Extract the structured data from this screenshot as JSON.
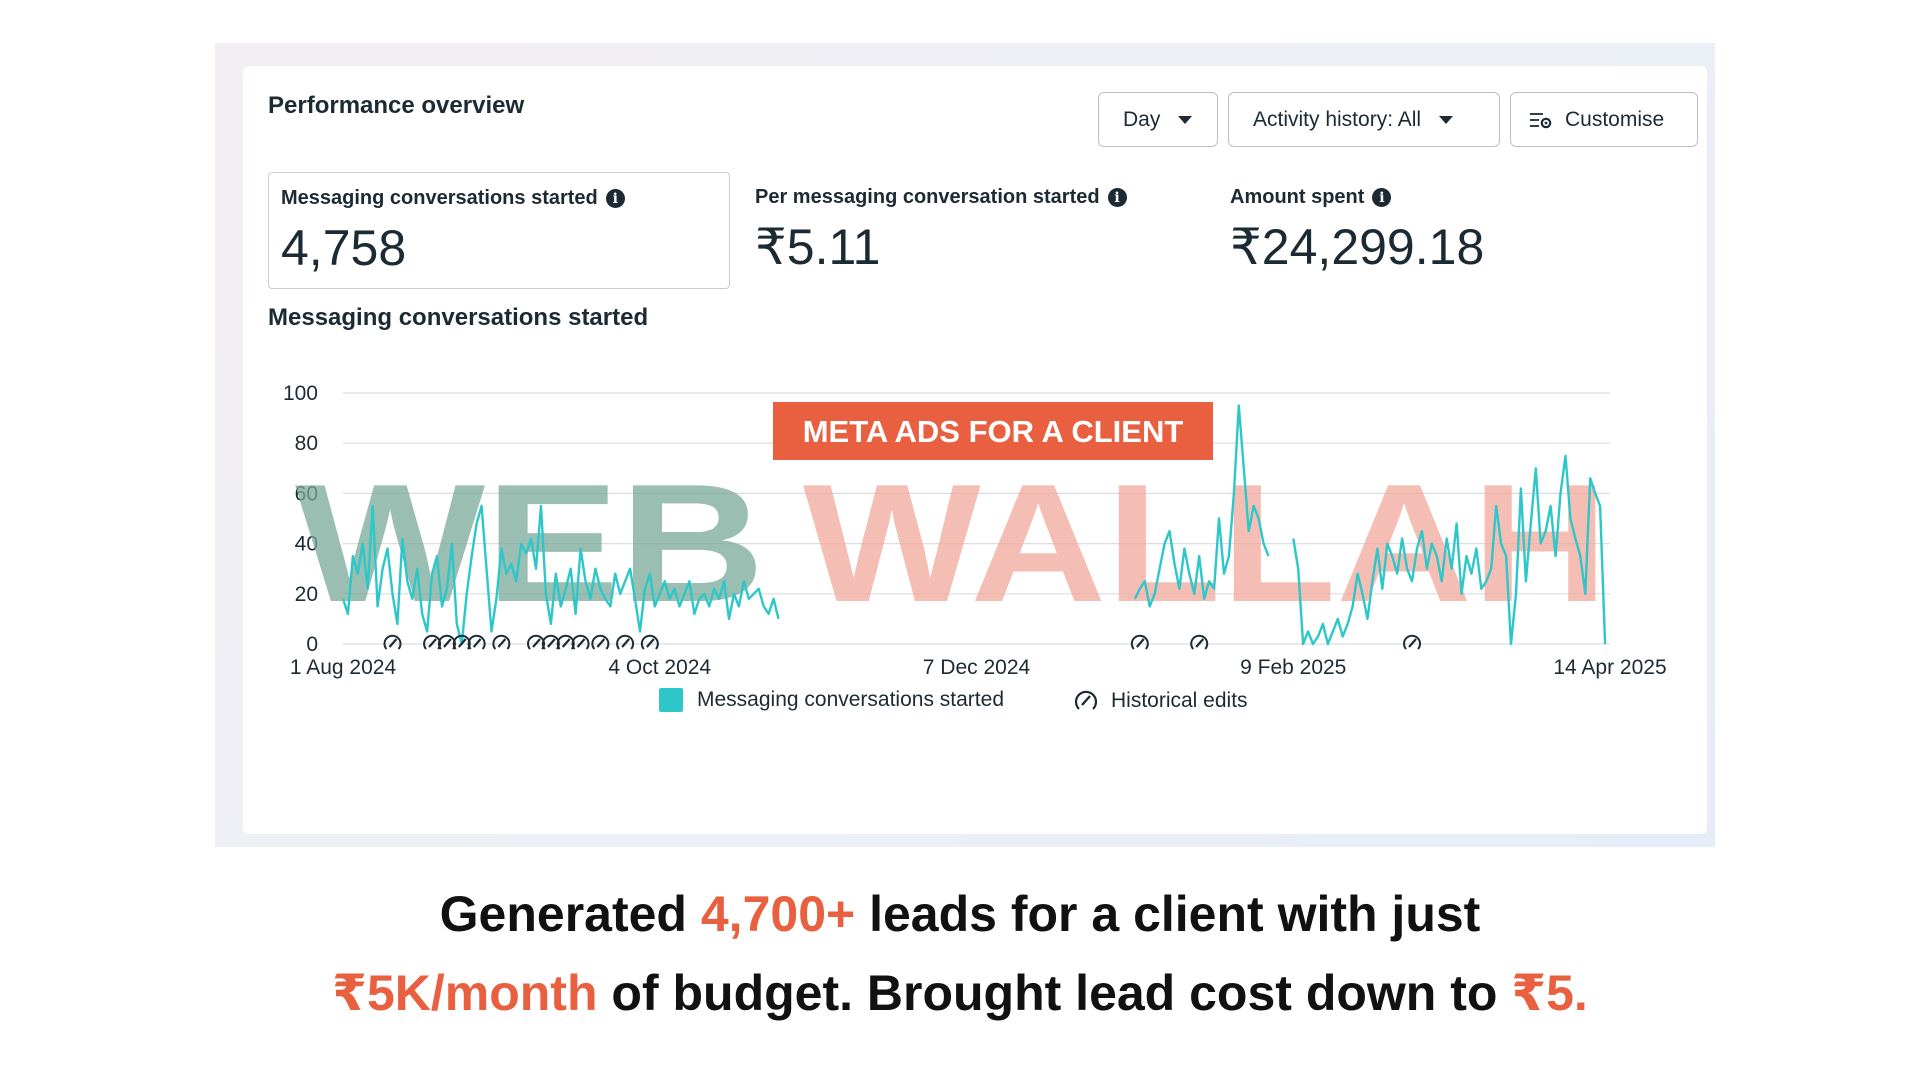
{
  "card": {
    "title": "Performance overview",
    "controls": {
      "day": "Day",
      "activity": "Activity history: All",
      "customise": "Customise"
    }
  },
  "metrics": [
    {
      "label": "Messaging conversations started",
      "value": "4,758"
    },
    {
      "label": "Per messaging conversation started",
      "value": "₹5.11"
    },
    {
      "label": "Amount spent",
      "value": "₹24,299.18"
    }
  ],
  "chart_title": "Messaging conversations started",
  "chart_data": {
    "type": "line",
    "title": "",
    "xlabel": "",
    "ylabel": "",
    "ylim": [
      0,
      100
    ],
    "yticks": [
      "0",
      "20",
      "40",
      "60",
      "80",
      "100"
    ],
    "xticks": [
      "1 Aug 2024",
      "4 Oct 2024",
      "7 Dec 2024",
      "9 Feb 2025",
      "14 Apr 2025"
    ],
    "grid": true,
    "legend_placement": "bottom-center",
    "series_color": "#2ec7c9",
    "series": [
      {
        "name": "Messaging conversations started",
        "segments": [
          {
            "start": "2024-08-01",
            "values": [
              18,
              12,
              35,
              28,
              40,
              22,
              55,
              15,
              30,
              38,
              20,
              8,
              42,
              25,
              18,
              30,
              12,
              5,
              28,
              35,
              15,
              22,
              40,
              8,
              0,
              20,
              35,
              48,
              55,
              30,
              5,
              18,
              38,
              28,
              32,
              25,
              40,
              36,
              42,
              30,
              55,
              20,
              8,
              28,
              15,
              22,
              30,
              12,
              38,
              25,
              18,
              30,
              22,
              18,
              15,
              28,
              20,
              25,
              30,
              18,
              5,
              22,
              28,
              15,
              20,
              25,
              18,
              22,
              15,
              20,
              25,
              12,
              18,
              20,
              15,
              22,
              18,
              25,
              10,
              20,
              15,
              25,
              18,
              20,
              22,
              15,
              12,
              18,
              10
            ]
          },
          {
            "start": "2025-01-08",
            "values": [
              18,
              22,
              25,
              15,
              20,
              30,
              40,
              45,
              32,
              22,
              38,
              28,
              20,
              35,
              18,
              25,
              22,
              50,
              28,
              35,
              60,
              95,
              70,
              45,
              55,
              50,
              40,
              35
            ]
          },
          {
            "start": "2025-02-09",
            "values": [
              42,
              30,
              0,
              5,
              0,
              3,
              8,
              0,
              5,
              10,
              3,
              8,
              15,
              28,
              20,
              10,
              25,
              38,
              22,
              40,
              35,
              28,
              42,
              30,
              25,
              38,
              45,
              30,
              40,
              35,
              25,
              42,
              30,
              48,
              20,
              35,
              28,
              38,
              22,
              25,
              30,
              55,
              40,
              35,
              0,
              20,
              62,
              25,
              48,
              70,
              40,
              45,
              55,
              35,
              60,
              75,
              50,
              42,
              35,
              20,
              66,
              60,
              55,
              0
            ]
          }
        ]
      }
    ],
    "historical_edit_markers": [
      "2024-08-11",
      "2024-08-19",
      "2024-08-22",
      "2024-08-25",
      "2024-08-28",
      "2024-09-02",
      "2024-09-09",
      "2024-09-12",
      "2024-09-15",
      "2024-09-18",
      "2024-09-22",
      "2024-09-27",
      "2024-10-02",
      "2025-01-09",
      "2025-01-21",
      "2025-03-05"
    ],
    "legend": [
      "Messaging conversations started",
      "Historical edits"
    ]
  },
  "watermark": {
    "badge": "META ADS FOR A CLIENT",
    "word1": "WEB",
    "word2": "WALLAH",
    "color1": "#7aa898",
    "color2": "#f2a89c",
    "badge_color": "#e8603f"
  },
  "caption": {
    "line1_pre": "Generated ",
    "line1_hl": "4,700+",
    "line1_post": " leads for a client with just",
    "line2_hl1": "₹5K/month",
    "line2_mid": " of budget. Brought lead cost down to ",
    "line2_hl2": "₹5."
  }
}
